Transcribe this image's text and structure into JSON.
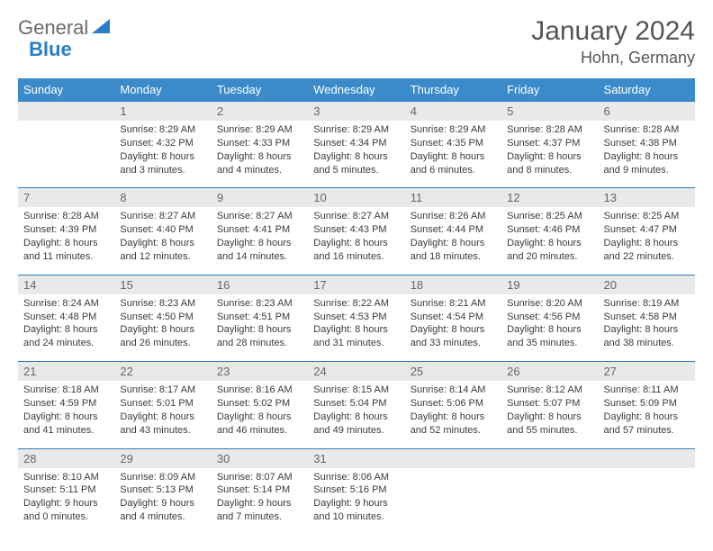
{
  "brand": {
    "word1": "General",
    "word2": "Blue"
  },
  "title": "January 2024",
  "location": "Hohn, Germany",
  "dayNames": [
    "Sunday",
    "Monday",
    "Tuesday",
    "Wednesday",
    "Thursday",
    "Friday",
    "Saturday"
  ],
  "colors": {
    "header_bg": "#3b8bca",
    "header_text": "#ffffff",
    "daynum_bg": "#e9e9e9",
    "border_top": "#2a7ec5",
    "text": "#3b3b3b",
    "title_text": "#555555",
    "logo_gray": "#6b6b6b",
    "logo_blue": "#2a7ec5",
    "background": "#ffffff"
  },
  "typography": {
    "title_fontsize": 30,
    "location_fontsize": 18,
    "header_fontsize": 13,
    "daynum_fontsize": 13,
    "cell_fontsize": 11
  },
  "weeks": [
    {
      "nums": [
        "",
        "1",
        "2",
        "3",
        "4",
        "5",
        "6"
      ],
      "cells": [
        null,
        {
          "sunrise": "Sunrise: 8:29 AM",
          "sunset": "Sunset: 4:32 PM",
          "daylight": "Daylight: 8 hours and 3 minutes."
        },
        {
          "sunrise": "Sunrise: 8:29 AM",
          "sunset": "Sunset: 4:33 PM",
          "daylight": "Daylight: 8 hours and 4 minutes."
        },
        {
          "sunrise": "Sunrise: 8:29 AM",
          "sunset": "Sunset: 4:34 PM",
          "daylight": "Daylight: 8 hours and 5 minutes."
        },
        {
          "sunrise": "Sunrise: 8:29 AM",
          "sunset": "Sunset: 4:35 PM",
          "daylight": "Daylight: 8 hours and 6 minutes."
        },
        {
          "sunrise": "Sunrise: 8:28 AM",
          "sunset": "Sunset: 4:37 PM",
          "daylight": "Daylight: 8 hours and 8 minutes."
        },
        {
          "sunrise": "Sunrise: 8:28 AM",
          "sunset": "Sunset: 4:38 PM",
          "daylight": "Daylight: 8 hours and 9 minutes."
        }
      ]
    },
    {
      "nums": [
        "7",
        "8",
        "9",
        "10",
        "11",
        "12",
        "13"
      ],
      "cells": [
        {
          "sunrise": "Sunrise: 8:28 AM",
          "sunset": "Sunset: 4:39 PM",
          "daylight": "Daylight: 8 hours and 11 minutes."
        },
        {
          "sunrise": "Sunrise: 8:27 AM",
          "sunset": "Sunset: 4:40 PM",
          "daylight": "Daylight: 8 hours and 12 minutes."
        },
        {
          "sunrise": "Sunrise: 8:27 AM",
          "sunset": "Sunset: 4:41 PM",
          "daylight": "Daylight: 8 hours and 14 minutes."
        },
        {
          "sunrise": "Sunrise: 8:27 AM",
          "sunset": "Sunset: 4:43 PM",
          "daylight": "Daylight: 8 hours and 16 minutes."
        },
        {
          "sunrise": "Sunrise: 8:26 AM",
          "sunset": "Sunset: 4:44 PM",
          "daylight": "Daylight: 8 hours and 18 minutes."
        },
        {
          "sunrise": "Sunrise: 8:25 AM",
          "sunset": "Sunset: 4:46 PM",
          "daylight": "Daylight: 8 hours and 20 minutes."
        },
        {
          "sunrise": "Sunrise: 8:25 AM",
          "sunset": "Sunset: 4:47 PM",
          "daylight": "Daylight: 8 hours and 22 minutes."
        }
      ]
    },
    {
      "nums": [
        "14",
        "15",
        "16",
        "17",
        "18",
        "19",
        "20"
      ],
      "cells": [
        {
          "sunrise": "Sunrise: 8:24 AM",
          "sunset": "Sunset: 4:48 PM",
          "daylight": "Daylight: 8 hours and 24 minutes."
        },
        {
          "sunrise": "Sunrise: 8:23 AM",
          "sunset": "Sunset: 4:50 PM",
          "daylight": "Daylight: 8 hours and 26 minutes."
        },
        {
          "sunrise": "Sunrise: 8:23 AM",
          "sunset": "Sunset: 4:51 PM",
          "daylight": "Daylight: 8 hours and 28 minutes."
        },
        {
          "sunrise": "Sunrise: 8:22 AM",
          "sunset": "Sunset: 4:53 PM",
          "daylight": "Daylight: 8 hours and 31 minutes."
        },
        {
          "sunrise": "Sunrise: 8:21 AM",
          "sunset": "Sunset: 4:54 PM",
          "daylight": "Daylight: 8 hours and 33 minutes."
        },
        {
          "sunrise": "Sunrise: 8:20 AM",
          "sunset": "Sunset: 4:56 PM",
          "daylight": "Daylight: 8 hours and 35 minutes."
        },
        {
          "sunrise": "Sunrise: 8:19 AM",
          "sunset": "Sunset: 4:58 PM",
          "daylight": "Daylight: 8 hours and 38 minutes."
        }
      ]
    },
    {
      "nums": [
        "21",
        "22",
        "23",
        "24",
        "25",
        "26",
        "27"
      ],
      "cells": [
        {
          "sunrise": "Sunrise: 8:18 AM",
          "sunset": "Sunset: 4:59 PM",
          "daylight": "Daylight: 8 hours and 41 minutes."
        },
        {
          "sunrise": "Sunrise: 8:17 AM",
          "sunset": "Sunset: 5:01 PM",
          "daylight": "Daylight: 8 hours and 43 minutes."
        },
        {
          "sunrise": "Sunrise: 8:16 AM",
          "sunset": "Sunset: 5:02 PM",
          "daylight": "Daylight: 8 hours and 46 minutes."
        },
        {
          "sunrise": "Sunrise: 8:15 AM",
          "sunset": "Sunset: 5:04 PM",
          "daylight": "Daylight: 8 hours and 49 minutes."
        },
        {
          "sunrise": "Sunrise: 8:14 AM",
          "sunset": "Sunset: 5:06 PM",
          "daylight": "Daylight: 8 hours and 52 minutes."
        },
        {
          "sunrise": "Sunrise: 8:12 AM",
          "sunset": "Sunset: 5:07 PM",
          "daylight": "Daylight: 8 hours and 55 minutes."
        },
        {
          "sunrise": "Sunrise: 8:11 AM",
          "sunset": "Sunset: 5:09 PM",
          "daylight": "Daylight: 8 hours and 57 minutes."
        }
      ]
    },
    {
      "nums": [
        "28",
        "29",
        "30",
        "31",
        "",
        "",
        ""
      ],
      "cells": [
        {
          "sunrise": "Sunrise: 8:10 AM",
          "sunset": "Sunset: 5:11 PM",
          "daylight": "Daylight: 9 hours and 0 minutes."
        },
        {
          "sunrise": "Sunrise: 8:09 AM",
          "sunset": "Sunset: 5:13 PM",
          "daylight": "Daylight: 9 hours and 4 minutes."
        },
        {
          "sunrise": "Sunrise: 8:07 AM",
          "sunset": "Sunset: 5:14 PM",
          "daylight": "Daylight: 9 hours and 7 minutes."
        },
        {
          "sunrise": "Sunrise: 8:06 AM",
          "sunset": "Sunset: 5:16 PM",
          "daylight": "Daylight: 9 hours and 10 minutes."
        },
        null,
        null,
        null
      ]
    }
  ]
}
